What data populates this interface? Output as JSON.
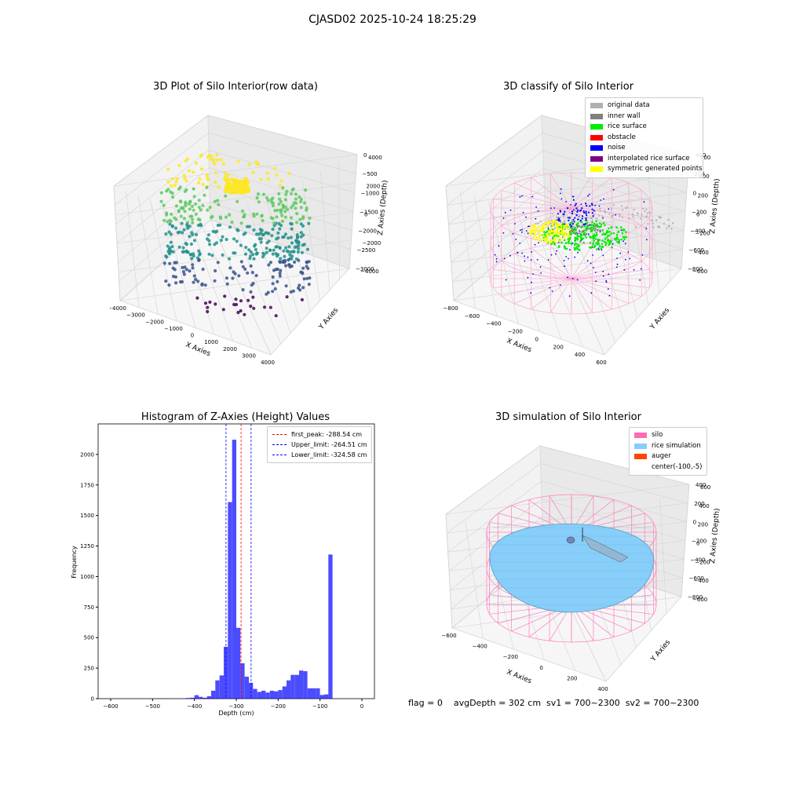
{
  "suptitle": "CJASD02 2025-10-24 18:25:29",
  "footer": "flag = 0    avgDepth = 302 cm  sv1 = 700~2300  sv2 = 700~2300",
  "colors": {
    "viridis": [
      "#440154",
      "#3b528b",
      "#21918c",
      "#5ec962",
      "#fde725"
    ],
    "original_data": "#b0b0b0",
    "inner_wall": "#808080",
    "rice_surface": "#00ee00",
    "obstacle": "#ff0000",
    "noise": "#0000ff",
    "interpolated_rice_surface": "#800080",
    "symmetric_generated_points": "#ffff00",
    "silo": "#ff69b4",
    "rice_simulation": "#87cefa",
    "auger": "#ff4500",
    "hist_bar": "#0000ff"
  },
  "chart_data": [
    {
      "type": "scatter",
      "subtype": "3d",
      "title": "3D Plot of Silo Interior(row data)",
      "xlabel": "X Axies",
      "ylabel": "Y Axies",
      "zlabel": "Z Axies (Depth)",
      "x_ticks": [
        "−4000",
        "−3000",
        "−2000",
        "−1000",
        "0",
        "1000",
        "2000",
        "3000",
        "4000"
      ],
      "y_ticks": [
        "−4000",
        "−2000",
        "0",
        "2000",
        "4000"
      ],
      "z_ticks": [
        "0",
        "−500",
        "−1000",
        "−1500",
        "−2000",
        "−2500",
        "−3000"
      ],
      "xlim": [
        -4000,
        4000
      ],
      "ylim": [
        -4000,
        4000
      ],
      "zlim": [
        -3000,
        0
      ],
      "colormap": "viridis"
    },
    {
      "type": "scatter",
      "subtype": "3d",
      "title": "3D classify of Silo Interior",
      "xlabel": "X Axies",
      "ylabel": "Y Axies",
      "zlabel": "Z Axies (Depth)",
      "x_ticks": [
        "−800",
        "−600",
        "−400",
        "−200",
        "0",
        "200",
        "400",
        "600"
      ],
      "y_ticks": [
        "−600",
        "−400",
        "−200",
        "0",
        "200",
        "400",
        "600"
      ],
      "z_ticks": [
        "400",
        "200",
        "0",
        "−200",
        "−400",
        "−600",
        "−800"
      ],
      "legend": [
        "original data",
        "inner wall",
        "rice surface",
        "obstacle",
        "noise",
        "interpolated rice surface",
        "symmetric generated points"
      ],
      "legend_position": "top-right"
    },
    {
      "type": "bar",
      "subtype": "histogram",
      "title": "Histogram of Z-Axies (Height) Values",
      "xlabel": "Depth (cm)",
      "ylabel": "Frequency",
      "xlim": [
        -630,
        30
      ],
      "ylim": [
        0,
        2250
      ],
      "x_ticks": [
        "−600",
        "−500",
        "−400",
        "−300",
        "−200",
        "−100",
        "0"
      ],
      "x_tick_values": [
        -600,
        -500,
        -400,
        -300,
        -200,
        -100,
        0
      ],
      "y_ticks": [
        "0",
        "250",
        "500",
        "750",
        "1000",
        "1250",
        "1500",
        "1750",
        "2000"
      ],
      "y_tick_values": [
        0,
        250,
        500,
        750,
        1000,
        1250,
        1500,
        1750,
        2000
      ],
      "bin_width": 10,
      "bins": [
        {
          "x": -480,
          "v": 3
        },
        {
          "x": -430,
          "v": 2
        },
        {
          "x": -420,
          "v": 5
        },
        {
          "x": -410,
          "v": 8
        },
        {
          "x": -400,
          "v": 28
        },
        {
          "x": -390,
          "v": 15
        },
        {
          "x": -380,
          "v": 8
        },
        {
          "x": -370,
          "v": 20
        },
        {
          "x": -360,
          "v": 65
        },
        {
          "x": -350,
          "v": 150
        },
        {
          "x": -340,
          "v": 190
        },
        {
          "x": -330,
          "v": 425
        },
        {
          "x": -320,
          "v": 1610
        },
        {
          "x": -310,
          "v": 2120
        },
        {
          "x": -300,
          "v": 580
        },
        {
          "x": -290,
          "v": 290
        },
        {
          "x": -280,
          "v": 180
        },
        {
          "x": -270,
          "v": 130
        },
        {
          "x": -260,
          "v": 80
        },
        {
          "x": -250,
          "v": 55
        },
        {
          "x": -240,
          "v": 65
        },
        {
          "x": -230,
          "v": 50
        },
        {
          "x": -220,
          "v": 65
        },
        {
          "x": -210,
          "v": 60
        },
        {
          "x": -200,
          "v": 70
        },
        {
          "x": -190,
          "v": 100
        },
        {
          "x": -180,
          "v": 150
        },
        {
          "x": -170,
          "v": 195
        },
        {
          "x": -160,
          "v": 195
        },
        {
          "x": -150,
          "v": 230
        },
        {
          "x": -140,
          "v": 225
        },
        {
          "x": -130,
          "v": 85
        },
        {
          "x": -120,
          "v": 85
        },
        {
          "x": -110,
          "v": 85
        },
        {
          "x": -100,
          "v": 30
        },
        {
          "x": -90,
          "v": 35
        },
        {
          "x": -80,
          "v": 1180
        }
      ],
      "vlines": [
        {
          "label": "first_peak: -288.54 cm",
          "value": -288.54,
          "color": "#ff0000"
        },
        {
          "label": "Upper_limit: -264.51 cm",
          "value": -264.51,
          "color": "#0000ff"
        },
        {
          "label": "Lower_limit: -324.58 cm",
          "value": -324.58,
          "color": "#0000ff"
        }
      ],
      "legend_position": "top-right"
    },
    {
      "type": "surface",
      "subtype": "3d",
      "title": "3D simulation of Silo Interior",
      "xlabel": "X Axies",
      "ylabel": "Y Axies",
      "zlabel": "Z Axies (Depth)",
      "x_ticks": [
        "−600",
        "−400",
        "−200",
        "0",
        "200",
        "400"
      ],
      "y_ticks": [
        "−600",
        "−400",
        "−200",
        "0",
        "200",
        "400",
        "600"
      ],
      "z_ticks": [
        "400",
        "200",
        "0",
        "−200",
        "−400",
        "−600",
        "−800"
      ],
      "legend": [
        "silo",
        "rice simulation",
        "auger",
        "center(-100,-5)"
      ],
      "legend_position": "top-right"
    }
  ]
}
